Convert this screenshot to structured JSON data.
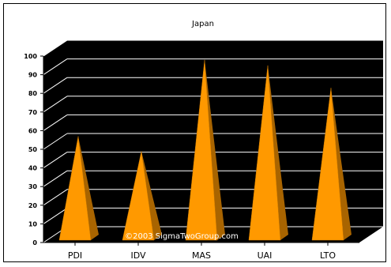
{
  "chart_data": {
    "type": "bar",
    "title": "Japan",
    "categories": [
      "PDI",
      "IDV",
      "MAS",
      "UAI",
      "LTO"
    ],
    "values": [
      54,
      46,
      95,
      92,
      80
    ],
    "ylim": [
      0,
      100
    ],
    "yticks": [
      0,
      10,
      20,
      30,
      40,
      50,
      60,
      70,
      80,
      90,
      100
    ],
    "xlabel": "",
    "ylabel": "",
    "grid": true,
    "bar_shape": "pyramid-3d",
    "colors": {
      "background": "#000000",
      "grid": "#ffffff",
      "bar_light": "#ff9900",
      "bar_dark": "#a86400",
      "bar_mid": "#cc7a00"
    }
  },
  "watermark": "©2003 SigmaTwoGroup.com"
}
